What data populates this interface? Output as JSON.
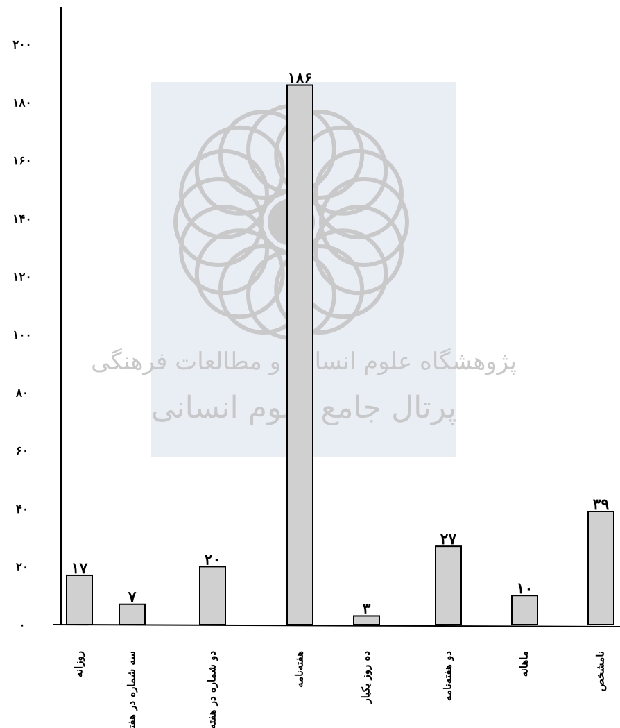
{
  "chart_data": {
    "type": "bar",
    "categories": [
      "روزانه",
      "سه شماره در هفته",
      "دو شماره در هفته",
      "هفته‌نامه",
      "ده روز یکبار",
      "دو هفته‌نامه",
      "ماهانه",
      "نامشخص"
    ],
    "values": [
      17,
      7,
      20,
      186,
      3,
      27,
      10,
      39
    ],
    "value_labels": [
      "۱۷",
      "۷",
      "۲۰",
      "۱۸۶",
      "۳",
      "۲۷",
      "۱۰",
      "۳۹"
    ],
    "y_ticks": [
      0,
      20,
      40,
      60,
      80,
      100,
      120,
      140,
      160,
      180,
      200
    ],
    "y_tick_labels": [
      "۰",
      "۲۰",
      "۴۰",
      "۶۰",
      "۸۰",
      "۱۰۰",
      "۱۲۰",
      "۱۴۰",
      "۱۶۰",
      "۱۸۰",
      "۲۰۰"
    ],
    "ylim": [
      0,
      200
    ],
    "bar_fill": "#d0d0d0",
    "bar_stroke": "#000000",
    "title": "",
    "xlabel": "",
    "ylabel": "",
    "grid": false,
    "legend": "none"
  },
  "watermark": {
    "line1": "پژوهشگاه علوم انسانی و مطالعات فرهنگی",
    "line2": "پرتال جامع علوم انسانی",
    "color": "#e9eef5"
  }
}
